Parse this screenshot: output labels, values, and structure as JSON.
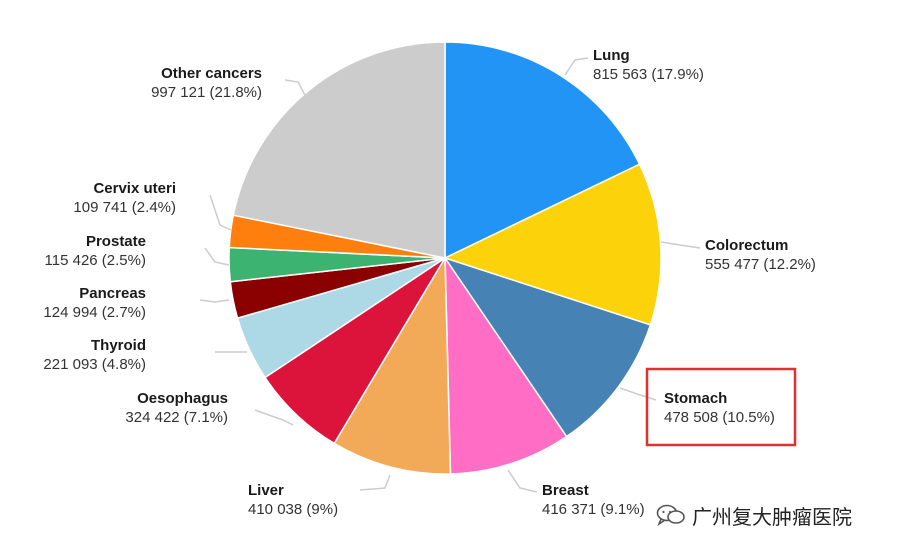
{
  "chart_data": {
    "type": "pie",
    "title": "",
    "slices": [
      {
        "name": "Lung",
        "value_text": "815 563 (17.9%)",
        "value": 815563,
        "percent": 17.9,
        "color": "#2294f5"
      },
      {
        "name": "Colorectum",
        "value_text": "555 477 (12.2%)",
        "value": 555477,
        "percent": 12.2,
        "color": "#fcd20a"
      },
      {
        "name": "Stomach",
        "value_text": "478 508 (10.5%)",
        "value": 478508,
        "percent": 10.5,
        "color": "#4682b4"
      },
      {
        "name": "Breast",
        "value_text": "416 371 (9.1%)",
        "value": 416371,
        "percent": 9.1,
        "color": "#ff6ec4"
      },
      {
        "name": "Liver",
        "value_text": "410 038 (9%)",
        "value": 410038,
        "percent": 9.0,
        "color": "#f2a958"
      },
      {
        "name": "Oesophagus",
        "value_text": "324 422 (7.1%)",
        "value": 324422,
        "percent": 7.1,
        "color": "#dc143c"
      },
      {
        "name": "Thyroid",
        "value_text": "221 093 (4.8%)",
        "value": 221093,
        "percent": 4.8,
        "color": "#add8e6"
      },
      {
        "name": "Pancreas",
        "value_text": "124 994 (2.7%)",
        "value": 124994,
        "percent": 2.7,
        "color": "#8b0000"
      },
      {
        "name": "Prostate",
        "value_text": "115 426 (2.5%)",
        "value": 115426,
        "percent": 2.5,
        "color": "#3cb371"
      },
      {
        "name": "Cervix uteri",
        "value_text": "109 741 (2.4%)",
        "value": 109741,
        "percent": 2.4,
        "color": "#ff7f0e"
      },
      {
        "name": "Other cancers",
        "value_text": "997 121 (21.8%)",
        "value": 997121,
        "percent": 21.8,
        "color": "#cccccc"
      }
    ],
    "highlighted": "Stomach",
    "highlight_color": "#e03131"
  },
  "watermark": {
    "text": "广州复大肿瘤医院",
    "icon": "wechat-icon"
  }
}
